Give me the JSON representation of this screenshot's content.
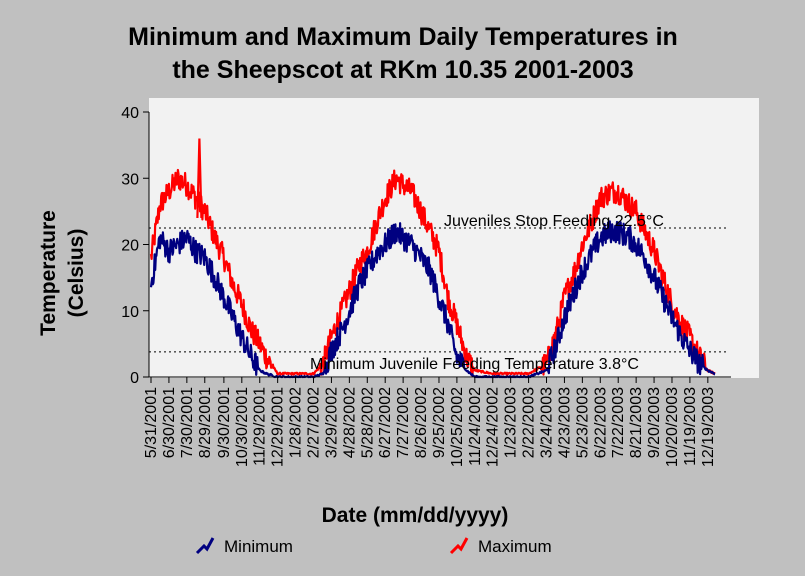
{
  "chart_data": {
    "type": "line",
    "title_line1": "Minimum and Maximum Daily Temperatures in",
    "title_line2": "the Sheepscot at RKm 10.35 2001-2003",
    "xlabel": "Date (mm/dd/yyyy)",
    "ylabel_line1": "Temperature",
    "ylabel_line2": "(Celsius)",
    "ylim": [
      0,
      40
    ],
    "yticks": [
      "0",
      "10",
      "20",
      "30",
      "40"
    ],
    "x_start": "5/31/2001",
    "x_end": "12/31/2003",
    "xtick_labels": [
      "5/31/2001",
      "6/30/2001",
      "7/30/2001",
      "8/29/2001",
      "9/30/2001",
      "10/30/2001",
      "11/29/2001",
      "12/29/2001",
      "1/28/2002",
      "2/27/2002",
      "3/29/2002",
      "4/28/2002",
      "5/28/2002",
      "6/27/2002",
      "7/27/2002",
      "8/26/2002",
      "9/25/2002",
      "10/25/2002",
      "11/24/2002",
      "12/24/2002",
      "1/23/2003",
      "2/22/2003",
      "3/24/2003",
      "4/23/2003",
      "5/23/2003",
      "6/22/2003",
      "7/22/2003",
      "8/21/2003",
      "9/20/2003",
      "10/20/2003",
      "11/19/2003",
      "12/19/2003"
    ],
    "grid": false,
    "legend_placement": "bottom",
    "reference_lines": [
      {
        "y": 22.5,
        "label": "Juveniles Stop Feeding 22.5°C"
      },
      {
        "y": 3.8,
        "label": "Minimum Juvenile Feeding Temperature 3.8°C"
      }
    ],
    "series": [
      {
        "name": "Minimum",
        "color": "#000080",
        "x": [
          "5/31/2001",
          "6/15/2001",
          "6/30/2001",
          "7/15/2001",
          "7/30/2001",
          "8/14/2001",
          "8/29/2001",
          "9/15/2001",
          "9/30/2001",
          "10/15/2001",
          "10/30/2001",
          "11/15/2001",
          "11/29/2001",
          "12/10/2001",
          "12/29/2001",
          "1/28/2002",
          "2/27/2002",
          "3/15/2002",
          "3/29/2002",
          "4/15/2002",
          "4/28/2002",
          "5/15/2002",
          "5/28/2002",
          "6/15/2002",
          "6/27/2002",
          "7/15/2002",
          "7/27/2002",
          "8/10/2002",
          "8/26/2002",
          "9/10/2002",
          "9/25/2002",
          "10/10/2002",
          "10/25/2002",
          "11/10/2002",
          "11/24/2002",
          "12/24/2002",
          "1/23/2003",
          "2/22/2003",
          "3/24/2003",
          "4/10/2003",
          "4/23/2003",
          "5/10/2003",
          "5/23/2003",
          "6/10/2003",
          "6/22/2003",
          "7/10/2003",
          "7/22/2003",
          "8/10/2003",
          "8/21/2003",
          "9/5/2003",
          "9/20/2003",
          "10/5/2003",
          "10/20/2003",
          "11/5/2003",
          "11/19/2003",
          "12/5/2003",
          "12/19/2003",
          "12/31/2003"
        ],
        "values": [
          14,
          21,
          19,
          20,
          21,
          19,
          18,
          15,
          12,
          9,
          6,
          3,
          1,
          0.5,
          0,
          0,
          0,
          0.5,
          4,
          7,
          10,
          14,
          16,
          19,
          20,
          22,
          21,
          20,
          18,
          16,
          12,
          8,
          3,
          1,
          0,
          0,
          0,
          0,
          1,
          5,
          9,
          13,
          16,
          19,
          21,
          22,
          22,
          21,
          20,
          18,
          15,
          12,
          9,
          6,
          4,
          2,
          1,
          0.5
        ]
      },
      {
        "name": "Maximum",
        "color": "#ff0000",
        "x": [
          "5/31/2001",
          "6/15/2001",
          "6/30/2001",
          "7/15/2001",
          "7/30/2001",
          "8/14/2001",
          "8/29/2001",
          "9/15/2001",
          "9/30/2001",
          "10/15/2001",
          "10/30/2001",
          "11/15/2001",
          "11/29/2001",
          "12/10/2001",
          "12/29/2001",
          "1/28/2002",
          "2/27/2002",
          "3/15/2002",
          "3/29/2002",
          "4/15/2002",
          "4/28/2002",
          "5/15/2002",
          "5/28/2002",
          "6/15/2002",
          "6/27/2002",
          "7/15/2002",
          "7/27/2002",
          "8/10/2002",
          "8/26/2002",
          "9/10/2002",
          "9/25/2002",
          "10/10/2002",
          "10/25/2002",
          "11/10/2002",
          "11/24/2002",
          "12/24/2002",
          "1/23/2003",
          "2/22/2003",
          "3/24/2003",
          "4/10/2003",
          "4/23/2003",
          "5/10/2003",
          "5/23/2003",
          "6/10/2003",
          "6/22/2003",
          "7/10/2003",
          "7/22/2003",
          "8/10/2003",
          "8/21/2003",
          "9/5/2003",
          "9/20/2003",
          "10/5/2003",
          "10/20/2003",
          "11/5/2003",
          "11/19/2003",
          "12/5/2003",
          "12/19/2003",
          "12/31/2003"
        ],
        "values": [
          18,
          26,
          28,
          30,
          29,
          27,
          25,
          21,
          18,
          14,
          11,
          7,
          5,
          3,
          0.5,
          0.5,
          0.5,
          2,
          6,
          10,
          13,
          17,
          19,
          24,
          27,
          30,
          29,
          28,
          25,
          22,
          19,
          12,
          8,
          3,
          1,
          0.5,
          0.5,
          0.5,
          2,
          7,
          12,
          16,
          20,
          24,
          27,
          28,
          28,
          26,
          25,
          22,
          19,
          15,
          11,
          8,
          6,
          3,
          1,
          0.5
        ]
      }
    ],
    "spike": {
      "x": "8/20/2001",
      "y": 36,
      "series": "Maximum"
    }
  }
}
